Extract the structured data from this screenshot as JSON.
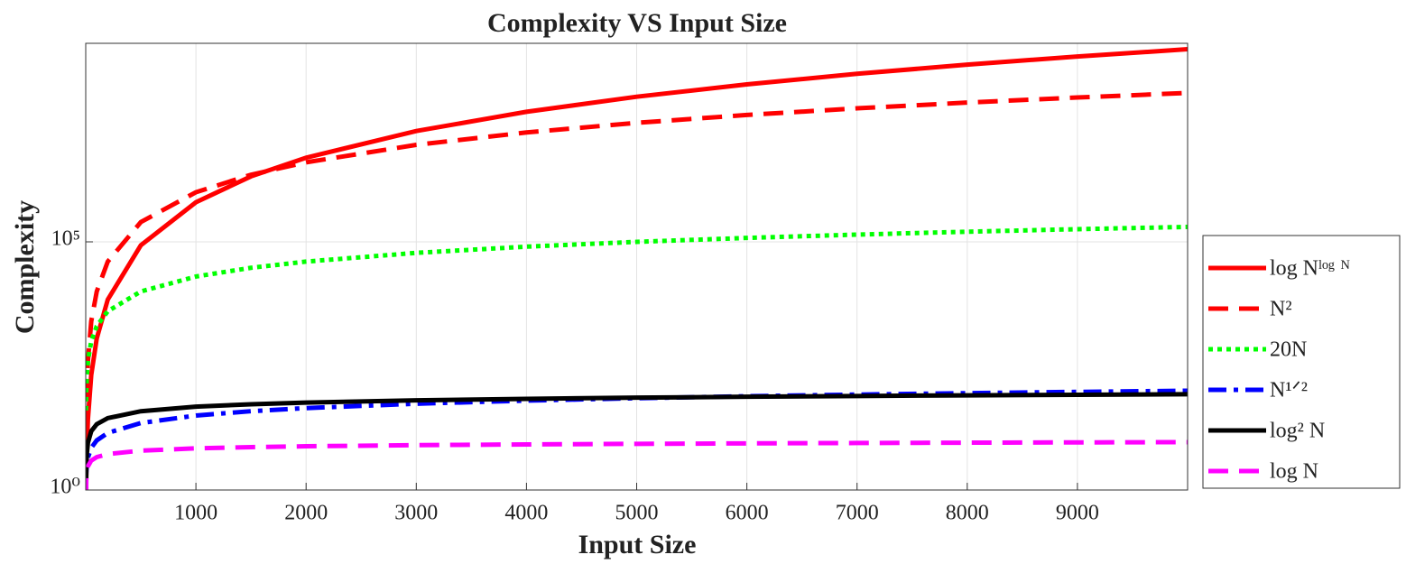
{
  "chart_data": {
    "type": "line",
    "title": "Complexity VS Input Size",
    "x_label": "Input Size",
    "y_label": "Complexity",
    "yscale": "log",
    "grid": true,
    "legend": "outside right",
    "xlim": [
      0,
      10000
    ],
    "xticks": [
      1000,
      2000,
      3000,
      4000,
      5000,
      6000,
      7000,
      8000,
      9000
    ],
    "ylim": [
      1,
      1000000000
    ],
    "yticks": [
      {
        "value": 1,
        "label": "10⁰"
      },
      {
        "value": 100000,
        "label": "10⁵"
      }
    ],
    "x": [
      2,
      5,
      10,
      20,
      50,
      100,
      200,
      500,
      1000,
      1500,
      2000,
      3000,
      4000,
      5000,
      6000,
      7000,
      8000,
      9000,
      10000
    ],
    "series": [
      {
        "name": "log Nˡᵒᵍ ᴺ",
        "color": "#ff0000",
        "linestyle": "solid",
        "values": [
          0.776,
          2.15,
          6.82,
          26.8,
          207.7,
          1133,
          6868,
          85200,
          628000,
          2087000,
          4960000,
          17110000,
          41700000,
          83900000,
          149000000,
          243000000,
          371800000,
          542600000,
          760800000
        ]
      },
      {
        "name": "N²",
        "color": "#ff0000",
        "linestyle": "dashed",
        "values": [
          4,
          25,
          100,
          400,
          2500,
          10000,
          40000,
          250000,
          1000000,
          2250000,
          4000000,
          9000000,
          16000000,
          25000000,
          36000000,
          49000000,
          64000000,
          81000000,
          100000000
        ]
      },
      {
        "name": "20N",
        "color": "#00ff00",
        "linestyle": "dotted",
        "values": [
          40,
          100,
          200,
          400,
          1000,
          2000,
          4000,
          10000,
          20000,
          30000,
          40000,
          60000,
          80000,
          100000,
          120000,
          140000,
          160000,
          180000,
          200000
        ]
      },
      {
        "name": "N¹ᐟ²",
        "color": "#0000ff",
        "linestyle": "dashdot",
        "values": [
          1.414,
          2.236,
          3.162,
          4.472,
          7.071,
          10,
          14.14,
          22.36,
          31.62,
          38.73,
          44.72,
          54.77,
          63.25,
          70.71,
          77.46,
          83.67,
          89.44,
          94.87,
          100
        ]
      },
      {
        "name": "log² N",
        "color": "#000000",
        "linestyle": "solid",
        "values": [
          0.48,
          2.59,
          5.302,
          8.974,
          15.3,
          21.21,
          28.07,
          38.62,
          47.72,
          53.48,
          57.77,
          64.1,
          68.79,
          72.54,
          75.68,
          78.39,
          80.77,
          82.9,
          84.83
        ]
      },
      {
        "name": "log N",
        "color": "#ff00ff",
        "linestyle": "dashed",
        "values": [
          0.6931,
          1.6094,
          2.3026,
          2.9957,
          3.912,
          4.6052,
          5.2983,
          6.2146,
          6.9078,
          7.3132,
          7.6009,
          8.0064,
          8.294,
          8.5172,
          8.6995,
          8.8537,
          8.9872,
          9.105,
          9.2103
        ]
      }
    ]
  }
}
